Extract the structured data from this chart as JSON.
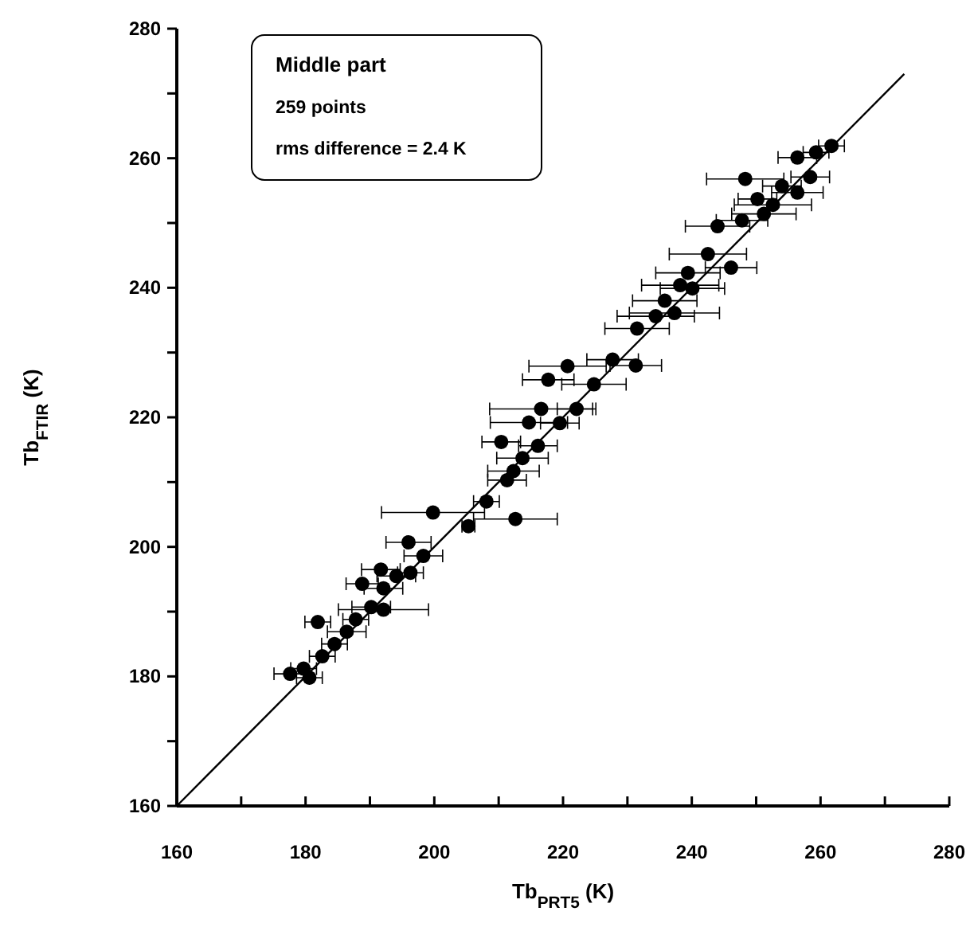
{
  "chart_data": {
    "type": "scatter",
    "xlabel": "Tb$_{PRT5}$ (K)",
    "ylabel": "Tb$_{FTIR}$ (K)",
    "annotations": [
      "Middle part",
      "259 points",
      "rms difference = 2.4 K"
    ],
    "xlim": [
      160,
      280
    ],
    "ylim": [
      160,
      280
    ],
    "xticks": [
      160,
      {
        "value": 170,
        "label": null
      },
      180,
      {
        "value": 190,
        "label": null
      },
      200,
      {
        "value": 210,
        "label": null
      },
      220,
      {
        "value": 230,
        "label": null
      },
      240,
      {
        "value": 250,
        "label": null
      },
      260,
      {
        "value": 270,
        "label": null
      },
      280
    ],
    "yticks": [
      160,
      {
        "value": 170,
        "label": null
      },
      180,
      {
        "value": 190,
        "label": null
      },
      200,
      {
        "value": 210,
        "label": null
      },
      220,
      {
        "value": 230,
        "label": null
      },
      240,
      {
        "value": 250,
        "label": null
      },
      260,
      {
        "value": 270,
        "label": null
      },
      280
    ],
    "grid": false,
    "series": [
      {
        "type": "line",
        "color": "#000000",
        "marker": "none",
        "x": [
          160,
          273
        ],
        "values": [
          160,
          273
        ]
      },
      {
        "color": "#000000",
        "marker": "circle",
        "x": [
          177.6,
          181.9,
          188.8,
          196.0,
          198.3,
          199.8,
          212.6,
          208.1,
          205.3,
          210.4,
          217.7,
          220.7,
          216.6,
          214.7,
          219.5,
          212.3,
          216.1,
          222.1,
          224.8,
          227.7,
          231.3,
          231.5,
          234.4,
          237.3,
          235.8,
          238.2,
          240.1,
          239.4,
          242.5,
          246.1,
          244.0,
          247.8,
          248.3,
          250.2,
          252.6,
          254.0,
          256.4,
          258.4,
          256.4,
          259.3,
          261.7,
          251.2,
          179.7,
          180.6,
          182.6,
          184.5,
          186.4,
          187.8,
          190.2,
          192.1,
          194.1,
          191.7,
          196.3,
          192.1,
          211.3,
          213.7
        ],
        "values": [
          180.4,
          188.4,
          194.3,
          200.7,
          198.6,
          205.3,
          204.3,
          207.0,
          203.2,
          216.2,
          225.8,
          227.9,
          221.3,
          219.2,
          219.1,
          211.7,
          215.6,
          221.3,
          225.1,
          228.9,
          228.0,
          233.7,
          235.6,
          236.1,
          238.0,
          240.4,
          239.9,
          242.3,
          245.2,
          243.1,
          249.5,
          250.4,
          256.8,
          253.7,
          252.8,
          255.7,
          254.7,
          257.1,
          260.1,
          260.9,
          261.9,
          251.4,
          181.2,
          179.8,
          183.1,
          185.0,
          186.9,
          188.8,
          190.7,
          193.6,
          195.5,
          196.5,
          196.0,
          190.3,
          210.3,
          213.7
        ],
        "xerrors": [
          2.5,
          2,
          2.5,
          3.5,
          3,
          8,
          6.5,
          2,
          1,
          3,
          4,
          6,
          8,
          6,
          3,
          4,
          3,
          3,
          5,
          4,
          4,
          5,
          6,
          7,
          5,
          6,
          5,
          5,
          6,
          4,
          5,
          4,
          6,
          3,
          6,
          3,
          4,
          3,
          3,
          2,
          2,
          5,
          2,
          2,
          2,
          2,
          3,
          2,
          3,
          3,
          3,
          3,
          2,
          7,
          3,
          4
        ]
      }
    ]
  }
}
